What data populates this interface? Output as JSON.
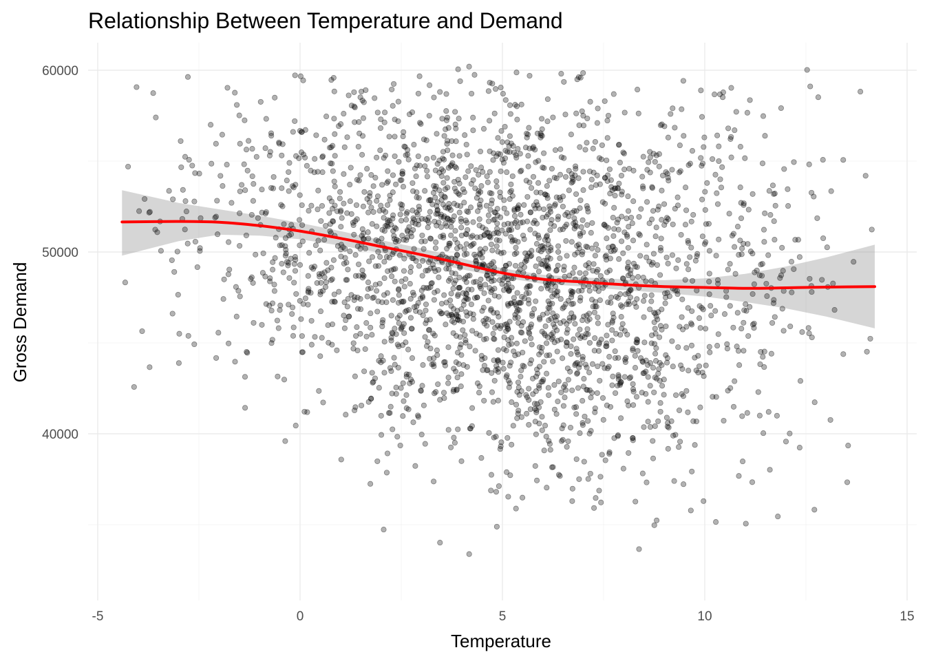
{
  "chart_data": {
    "type": "scatter",
    "title": "Relationship Between Temperature and Demand",
    "xlabel": "Temperature",
    "ylabel": "Gross Demand",
    "xlim": [
      -5,
      15
    ],
    "ylim": [
      32000,
      61000
    ],
    "x_ticks": [
      -5,
      0,
      5,
      10,
      15
    ],
    "x_tick_labels": [
      "-5",
      "0",
      "5",
      "10",
      "15"
    ],
    "y_ticks": [
      40000,
      50000,
      60000
    ],
    "y_tick_labels": [
      "40000",
      "50000",
      "60000"
    ],
    "grid": true,
    "point_color": "#000000",
    "point_opacity": 0.3,
    "smooth_color": "#ff0000",
    "band_color": "#999999",
    "points_summary": {
      "count": 2600,
      "x_range": [
        -4.4,
        14.2
      ],
      "y_range": [
        33000,
        60200
      ]
    },
    "smooth": {
      "x": [
        -4.4,
        -3,
        -2,
        -1,
        0,
        1,
        2,
        3,
        4,
        5,
        6,
        7,
        8,
        9,
        10,
        11,
        12,
        13,
        14.2
      ],
      "y": [
        51650,
        51680,
        51640,
        51450,
        51150,
        50750,
        50300,
        49850,
        49350,
        48850,
        48500,
        48350,
        48200,
        48100,
        48050,
        48000,
        48030,
        48070,
        48100
      ],
      "lower": [
        49800,
        50600,
        50950,
        50900,
        50700,
        50350,
        49950,
        49500,
        49050,
        48600,
        48250,
        48100,
        47900,
        47750,
        47550,
        47250,
        46900,
        46450,
        45800
      ],
      "upper": [
        53400,
        52700,
        52350,
        52000,
        51600,
        51150,
        50650,
        50200,
        49650,
        49100,
        48750,
        48600,
        48500,
        48450,
        48550,
        48800,
        49200,
        49700,
        50400
      ]
    }
  }
}
